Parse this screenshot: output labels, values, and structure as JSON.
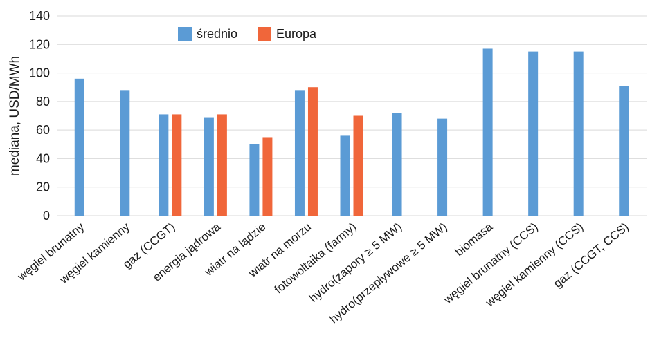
{
  "chart_data": {
    "type": "bar",
    "ylabel": "mediana, USD/MWh",
    "ylim": [
      0,
      140
    ],
    "yticks": [
      0,
      20,
      40,
      60,
      80,
      100,
      120,
      140
    ],
    "grid": true,
    "legend_position": "top-left",
    "categories": [
      "węgiel brunatny",
      "węgiel kamienny",
      "gaz (CCGT)",
      "energia jądrowa",
      "wiatr na lądzie",
      "wiatr na morzu",
      "fotowoltaika (farmy)",
      "hydro(zapory ≥ 5 MW)",
      "hydro(przepływowe ≥ 5 MW)",
      "biomasa",
      "węgiel brunatny (CCS)",
      "węgiel kamienny (CCS)",
      "gaz (CCGT, CCS)"
    ],
    "series": [
      {
        "name": "średnio",
        "color": "#5B9BD5",
        "values": [
          96,
          88,
          71,
          69,
          50,
          88,
          56,
          72,
          68,
          117,
          115,
          115,
          91
        ]
      },
      {
        "name": "Europa",
        "color": "#F0663A",
        "values": [
          null,
          null,
          71,
          71,
          55,
          90,
          70,
          null,
          null,
          null,
          null,
          null,
          null
        ]
      }
    ]
  }
}
